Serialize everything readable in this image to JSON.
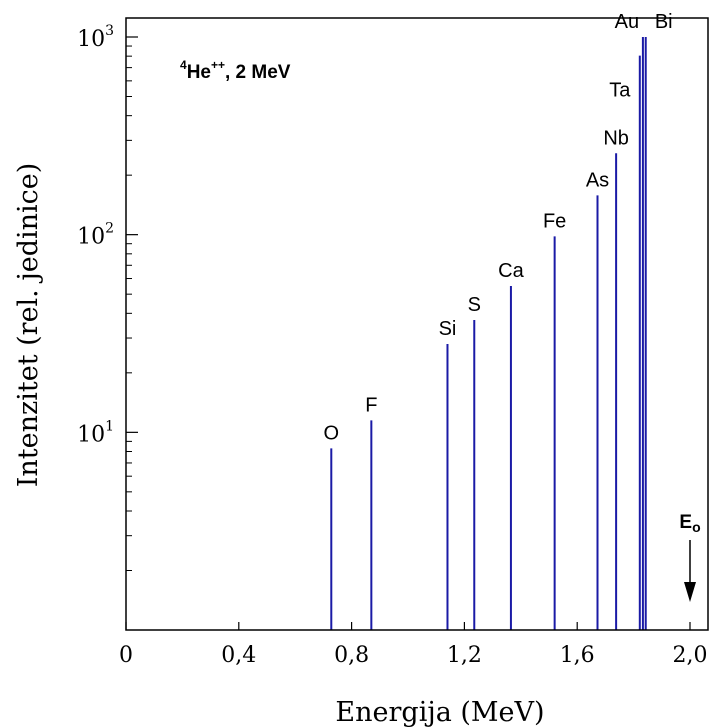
{
  "chart_data": {
    "type": "bar",
    "title": "",
    "xlabel": "Energija (MeV)",
    "ylabel": "Intenzitet (rel. jedinice)",
    "annotation": {
      "base": "He",
      "mass": "4",
      "charge": "++",
      "energy": ", 2 MeV"
    },
    "xlim": [
      0,
      2.0
    ],
    "ylim": [
      1,
      1000
    ],
    "yscale": "log",
    "grid": false,
    "legend": "none",
    "x_ticks": [
      {
        "value": 0.0,
        "label": "0"
      },
      {
        "value": 0.4,
        "label": "0,4"
      },
      {
        "value": 0.8,
        "label": "0,8"
      },
      {
        "value": 1.2,
        "label": "1,2"
      },
      {
        "value": 1.6,
        "label": "1,6"
      },
      {
        "value": 2.0,
        "label": "2,0"
      }
    ],
    "y_ticks": [
      {
        "value": 10,
        "base": "10",
        "exp": "1"
      },
      {
        "value": 100,
        "base": "10",
        "exp": "2"
      },
      {
        "value": 1000,
        "base": "10",
        "exp": "3"
      }
    ],
    "bars": [
      {
        "element": "O",
        "x": 0.728,
        "value": 8.3
      },
      {
        "element": "F",
        "x": 0.87,
        "value": 11.5
      },
      {
        "element": "Si",
        "x": 1.14,
        "value": 28
      },
      {
        "element": "S",
        "x": 1.235,
        "value": 37
      },
      {
        "element": "Ca",
        "x": 1.365,
        "value": 55
      },
      {
        "element": "Fe",
        "x": 1.52,
        "value": 98
      },
      {
        "element": "As",
        "x": 1.672,
        "value": 158
      },
      {
        "element": "Nb",
        "x": 1.738,
        "value": 258
      },
      {
        "element": "Ta",
        "x": 1.822,
        "value": 805
      },
      {
        "element": "Au",
        "x": 1.833,
        "value": 1000
      },
      {
        "element": "Bi",
        "x": 1.843,
        "value": 1000
      }
    ],
    "incident_energy": {
      "label": "E",
      "subscript": "o",
      "x": 2.0
    },
    "colors": {
      "bar": "#1a1aa6",
      "axis": "#000000"
    }
  }
}
